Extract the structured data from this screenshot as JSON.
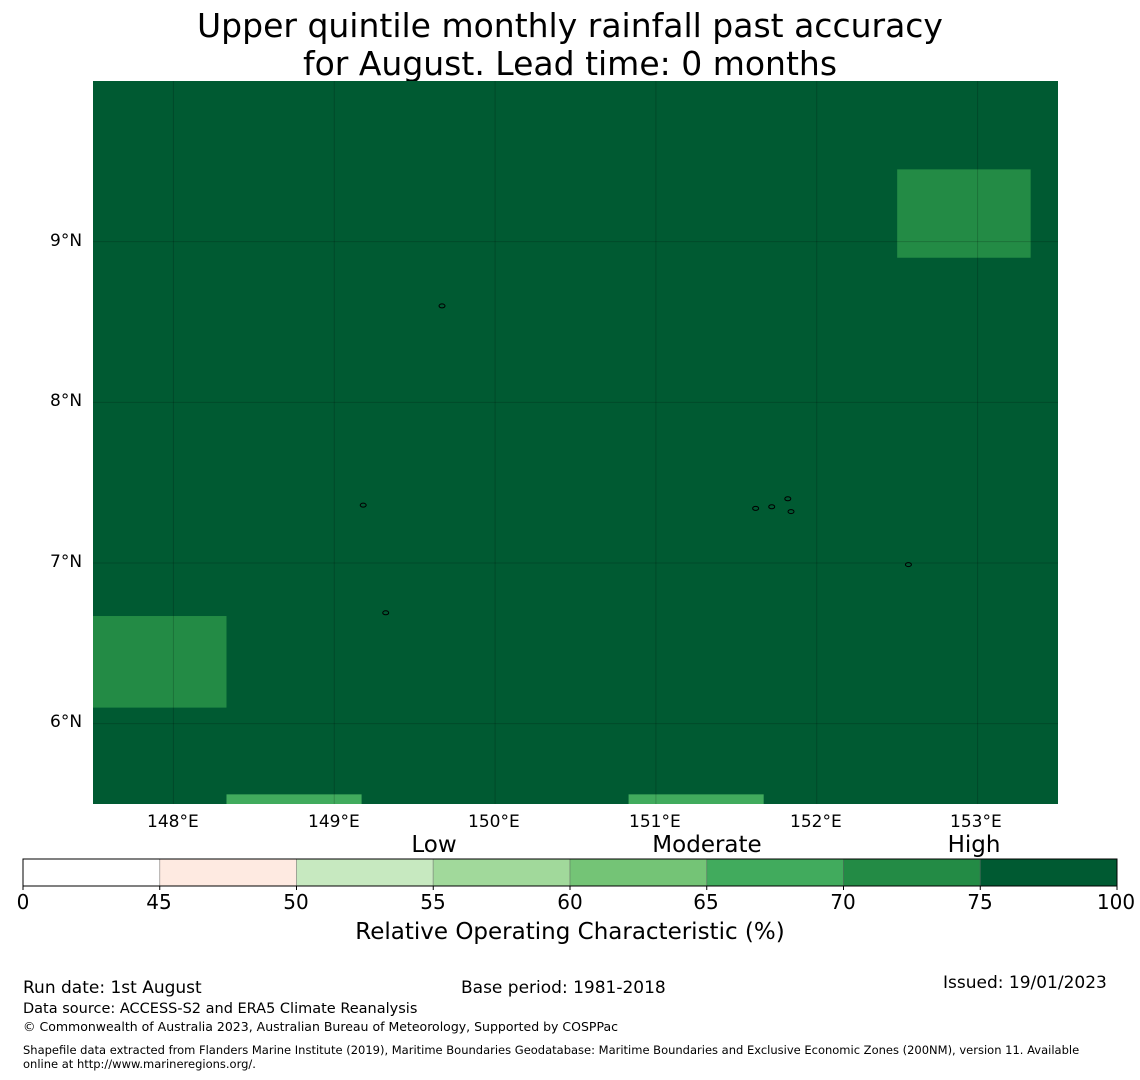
{
  "title": {
    "line1": "Upper quintile monthly rainfall past accuracy",
    "line2": "for August. Lead time: 0 months"
  },
  "map": {
    "lon_range": [
      147.5,
      153.5
    ],
    "lat_range": [
      5.5,
      10.0
    ],
    "lon_ticks": [
      "148°E",
      "149°E",
      "150°E",
      "151°E",
      "152°E",
      "153°E"
    ],
    "lat_ticks": [
      "9°N",
      "8°N",
      "7°N",
      "6°N"
    ],
    "gridlines": true,
    "background_class": "75-100",
    "cells": [
      {
        "lon": [
          152.5,
          153.33
        ],
        "lat": [
          8.9,
          9.45
        ],
        "class": "70-75"
      },
      {
        "lon": [
          147.5,
          148.33
        ],
        "lat": [
          6.1,
          6.67
        ],
        "class": "70-75"
      },
      {
        "lon": [
          148.33,
          149.17
        ],
        "lat": [
          5.5,
          5.56
        ],
        "class": "65-70"
      },
      {
        "lon": [
          150.83,
          151.67
        ],
        "lat": [
          5.5,
          5.56
        ],
        "class": "65-70"
      }
    ],
    "islands": [
      {
        "lon": 149.67,
        "lat": 8.6
      },
      {
        "lon": 149.18,
        "lat": 7.36
      },
      {
        "lon": 149.32,
        "lat": 6.69
      },
      {
        "lon": 151.62,
        "lat": 7.34
      },
      {
        "lon": 151.72,
        "lat": 7.35
      },
      {
        "lon": 151.82,
        "lat": 7.4
      },
      {
        "lon": 151.84,
        "lat": 7.32
      },
      {
        "lon": 152.57,
        "lat": 6.99
      }
    ]
  },
  "colorbar": {
    "ticks": [
      "0",
      "45",
      "50",
      "55",
      "60",
      "65",
      "70",
      "75",
      "100"
    ],
    "colors": [
      "#ffffff",
      "#feeae1",
      "#c7e9c0",
      "#a1d99b",
      "#74c476",
      "#41ab5d",
      "#238b45",
      "#005a32"
    ],
    "categories": {
      "low": "Low",
      "moderate": "Moderate",
      "high": "High"
    },
    "label": "Relative Operating Characteristic (%)"
  },
  "footer": {
    "run_date": "Run date: 1st August",
    "base_period": "Base period: 1981-2018",
    "issued": "Issued: 19/01/2023",
    "data_source": "Data source: ACCESS-S2 and ERA5 Climate Reanalysis",
    "copyright": "© Commonwealth of Australia 2023, Australian Bureau of Meteorology, Supported by COSPPac",
    "shapefile_line1": "Shapefile data extracted from Flanders Marine Institute (2019), Maritime Boundaries Geodatabase: Maritime Boundaries and Exclusive Economic Zones (200NM), version 11. Available",
    "shapefile_line2": "online at http://www.marineregions.org/."
  }
}
